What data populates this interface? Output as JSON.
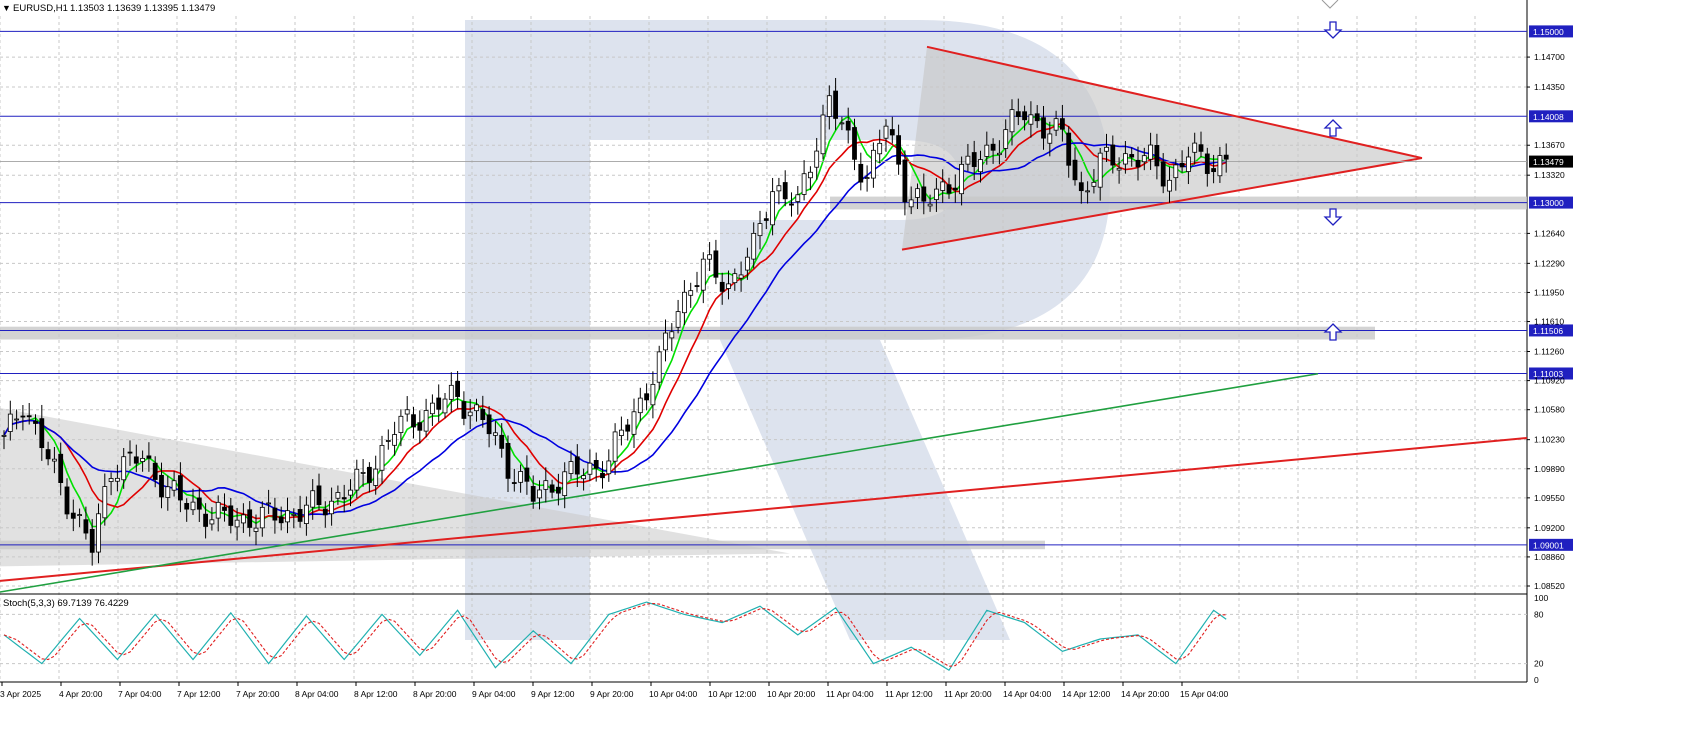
{
  "header": {
    "symbol": "EURUSD,H1",
    "ohlc": "1.13503 1.13639 1.13395 1.13479"
  },
  "stoch": {
    "label": "Stoch(5,3,3) 69.7139 76.4229",
    "ticks": [
      "100",
      "80",
      "20",
      "0"
    ]
  },
  "colors": {
    "background": "#ffffff",
    "grid": "#c8c8c8",
    "bull": "#ffffff",
    "bear": "#000000",
    "sma_fast": "#00e000",
    "sma_mid": "#e00000",
    "sma_slow": "#0000e0",
    "sma_long": "#20a040",
    "level_line": "#2020c0",
    "trend": "#e02020",
    "stoch_main": "#20b0b0",
    "stoch_signal": "#e02020",
    "watermark": "#dde3ee",
    "zone": "#c8c8c8"
  },
  "chart_data": {
    "type": "candlestick",
    "price_ylim": [
      1.0845,
      1.1518
    ],
    "y_ticks": [
      "1.14700",
      "1.14350",
      "1.13670",
      "1.13320",
      "1.12640",
      "1.12290",
      "1.11950",
      "1.11610",
      "1.11260",
      "1.10920",
      "1.10580",
      "1.10230",
      "1.09890",
      "1.09550",
      "1.09200",
      "1.08860",
      "1.08520"
    ],
    "x_ticks": [
      "3 Apr 2025",
      "4 Apr 20:00",
      "7 Apr 04:00",
      "7 Apr 12:00",
      "7 Apr 20:00",
      "8 Apr 04:00",
      "8 Apr 12:00",
      "8 Apr 20:00",
      "9 Apr 04:00",
      "9 Apr 12:00",
      "9 Apr 20:00",
      "10 Apr 04:00",
      "10 Apr 12:00",
      "10 Apr 20:00",
      "11 Apr 04:00",
      "11 Apr 12:00",
      "11 Apr 20:00",
      "14 Apr 04:00",
      "14 Apr 12:00",
      "14 Apr 20:00",
      "15 Apr 04:00"
    ],
    "levels": [
      {
        "label": "1.15000",
        "value": 1.15
      },
      {
        "label": "1.14008",
        "value": 1.14008
      },
      {
        "label": "1.13000",
        "value": 1.13
      },
      {
        "label": "1.11506",
        "value": 1.11506
      },
      {
        "label": "1.11003",
        "value": 1.11003
      },
      {
        "label": "1.09001",
        "value": 1.09001
      }
    ],
    "current_price": "1.13479",
    "anchors": [
      [
        0,
        1.102
      ],
      [
        3,
        1.1068
      ],
      [
        7,
        1.1
      ],
      [
        10,
        1.0955
      ],
      [
        14,
        1.0895
      ],
      [
        17,
        1.0992
      ],
      [
        22,
        1.1
      ],
      [
        28,
        1.095
      ],
      [
        35,
        1.093
      ],
      [
        42,
        1.0932
      ],
      [
        50,
        1.0945
      ],
      [
        57,
        1.0975
      ],
      [
        62,
        1.1035
      ],
      [
        67,
        1.1055
      ],
      [
        72,
        1.1075
      ],
      [
        76,
        1.1045
      ],
      [
        80,
        1.0995
      ],
      [
        84,
        1.0955
      ],
      [
        88,
        1.0978
      ],
      [
        92,
        1.0985
      ],
      [
        96,
        1.1
      ],
      [
        100,
        1.1055
      ],
      [
        104,
        1.111
      ],
      [
        107,
        1.118
      ],
      [
        111,
        1.1225
      ],
      [
        115,
        1.1205
      ],
      [
        119,
        1.1245
      ],
      [
        122,
        1.132
      ],
      [
        126,
        1.1295
      ],
      [
        129,
        1.1375
      ],
      [
        131,
        1.142
      ],
      [
        134,
        1.137
      ],
      [
        137,
        1.133
      ],
      [
        140,
        1.139
      ],
      [
        143,
        1.132
      ],
      [
        146,
        1.1295
      ],
      [
        150,
        1.1325
      ],
      [
        154,
        1.1345
      ],
      [
        158,
        1.1375
      ],
      [
        162,
        1.1405
      ],
      [
        165,
        1.139
      ],
      [
        168,
        1.1375
      ],
      [
        171,
        1.131
      ],
      [
        174,
        1.1345
      ],
      [
        178,
        1.1355
      ],
      [
        182,
        1.1348
      ],
      [
        185,
        1.133
      ],
      [
        188,
        1.1355
      ],
      [
        192,
        1.1348
      ]
    ],
    "stoch_anchors": [
      [
        0,
        55
      ],
      [
        6,
        20
      ],
      [
        12,
        75
      ],
      [
        18,
        25
      ],
      [
        24,
        80
      ],
      [
        30,
        25
      ],
      [
        36,
        82
      ],
      [
        42,
        20
      ],
      [
        48,
        78
      ],
      [
        54,
        25
      ],
      [
        60,
        80
      ],
      [
        66,
        30
      ],
      [
        72,
        85
      ],
      [
        78,
        15
      ],
      [
        84,
        60
      ],
      [
        90,
        20
      ],
      [
        96,
        80
      ],
      [
        102,
        95
      ],
      [
        108,
        80
      ],
      [
        114,
        70
      ],
      [
        120,
        90
      ],
      [
        126,
        55
      ],
      [
        132,
        88
      ],
      [
        138,
        20
      ],
      [
        144,
        40
      ],
      [
        150,
        12
      ],
      [
        156,
        85
      ],
      [
        162,
        70
      ],
      [
        168,
        35
      ],
      [
        174,
        50
      ],
      [
        180,
        55
      ],
      [
        186,
        20
      ],
      [
        192,
        85
      ],
      [
        194,
        74
      ]
    ]
  }
}
